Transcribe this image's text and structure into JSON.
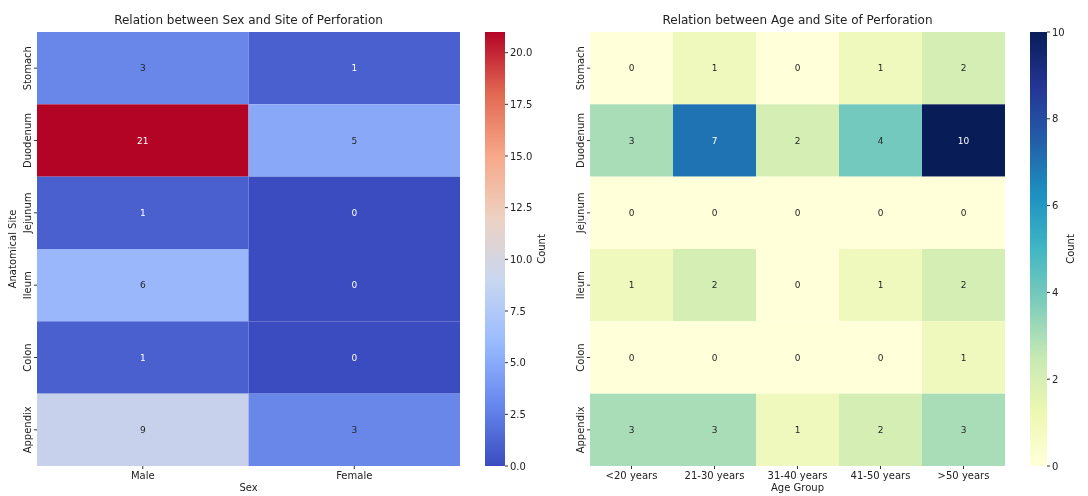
{
  "chart_data": [
    {
      "type": "heatmap",
      "title": "Relation between Sex and Site of Perforation",
      "xlabel": "Sex",
      "ylabel": "Anatomical Site",
      "clabel": "Count",
      "categories": [
        "Male",
        "Female"
      ],
      "y_categories": [
        "Stomach",
        "Duodenum",
        "Jejunum",
        "Ileum",
        "Colon",
        "Appendix"
      ],
      "cells": [
        [
          3,
          1
        ],
        [
          21,
          5
        ],
        [
          1,
          0
        ],
        [
          6,
          0
        ],
        [
          1,
          0
        ],
        [
          9,
          3
        ]
      ],
      "clim": [
        0,
        21
      ],
      "cticks": [
        {
          "value": 0,
          "label": "0.0"
        },
        {
          "value": 2.5,
          "label": "2.5"
        },
        {
          "value": 5,
          "label": "5.0"
        },
        {
          "value": 7.5,
          "label": "7.5"
        },
        {
          "value": 10,
          "label": "10.0"
        },
        {
          "value": 12.5,
          "label": "12.5"
        },
        {
          "value": 15,
          "label": "15.0"
        },
        {
          "value": 17.5,
          "label": "17.5"
        },
        {
          "value": 20,
          "label": "20.0"
        }
      ],
      "colors": [
        "#3b4cc0",
        "#6788ee",
        "#9abbff",
        "#c9d7f0",
        "#edd1c2",
        "#f7a889",
        "#e26952",
        "#b40426"
      ],
      "data_labels": true
    },
    {
      "type": "heatmap",
      "title": "Relation between Age and Site of Perforation",
      "xlabel": "Age Group",
      "clabel": "Count",
      "categories": [
        "<20 years",
        "21-30 years",
        "31-40 years",
        "41-50 years",
        ">50 years"
      ],
      "y_categories": [
        "Stomach",
        "Duodenum",
        "Jejunum",
        "Ileum",
        "Colon",
        "Appendix"
      ],
      "cells": [
        [
          0,
          1,
          0,
          1,
          2
        ],
        [
          3,
          7,
          2,
          4,
          10
        ],
        [
          0,
          0,
          0,
          0,
          0
        ],
        [
          1,
          2,
          0,
          1,
          2
        ],
        [
          0,
          0,
          0,
          0,
          1
        ],
        [
          3,
          3,
          1,
          2,
          3
        ]
      ],
      "clim": [
        0,
        10
      ],
      "cticks": [
        0,
        2,
        4,
        6,
        8,
        10
      ],
      "colors": [
        "#ffffd9",
        "#edf8b1",
        "#c7e9b4",
        "#7fcdbb",
        "#41b6c4",
        "#1d91c0",
        "#225ea8",
        "#253494",
        "#081d58"
      ],
      "data_labels": true
    }
  ]
}
